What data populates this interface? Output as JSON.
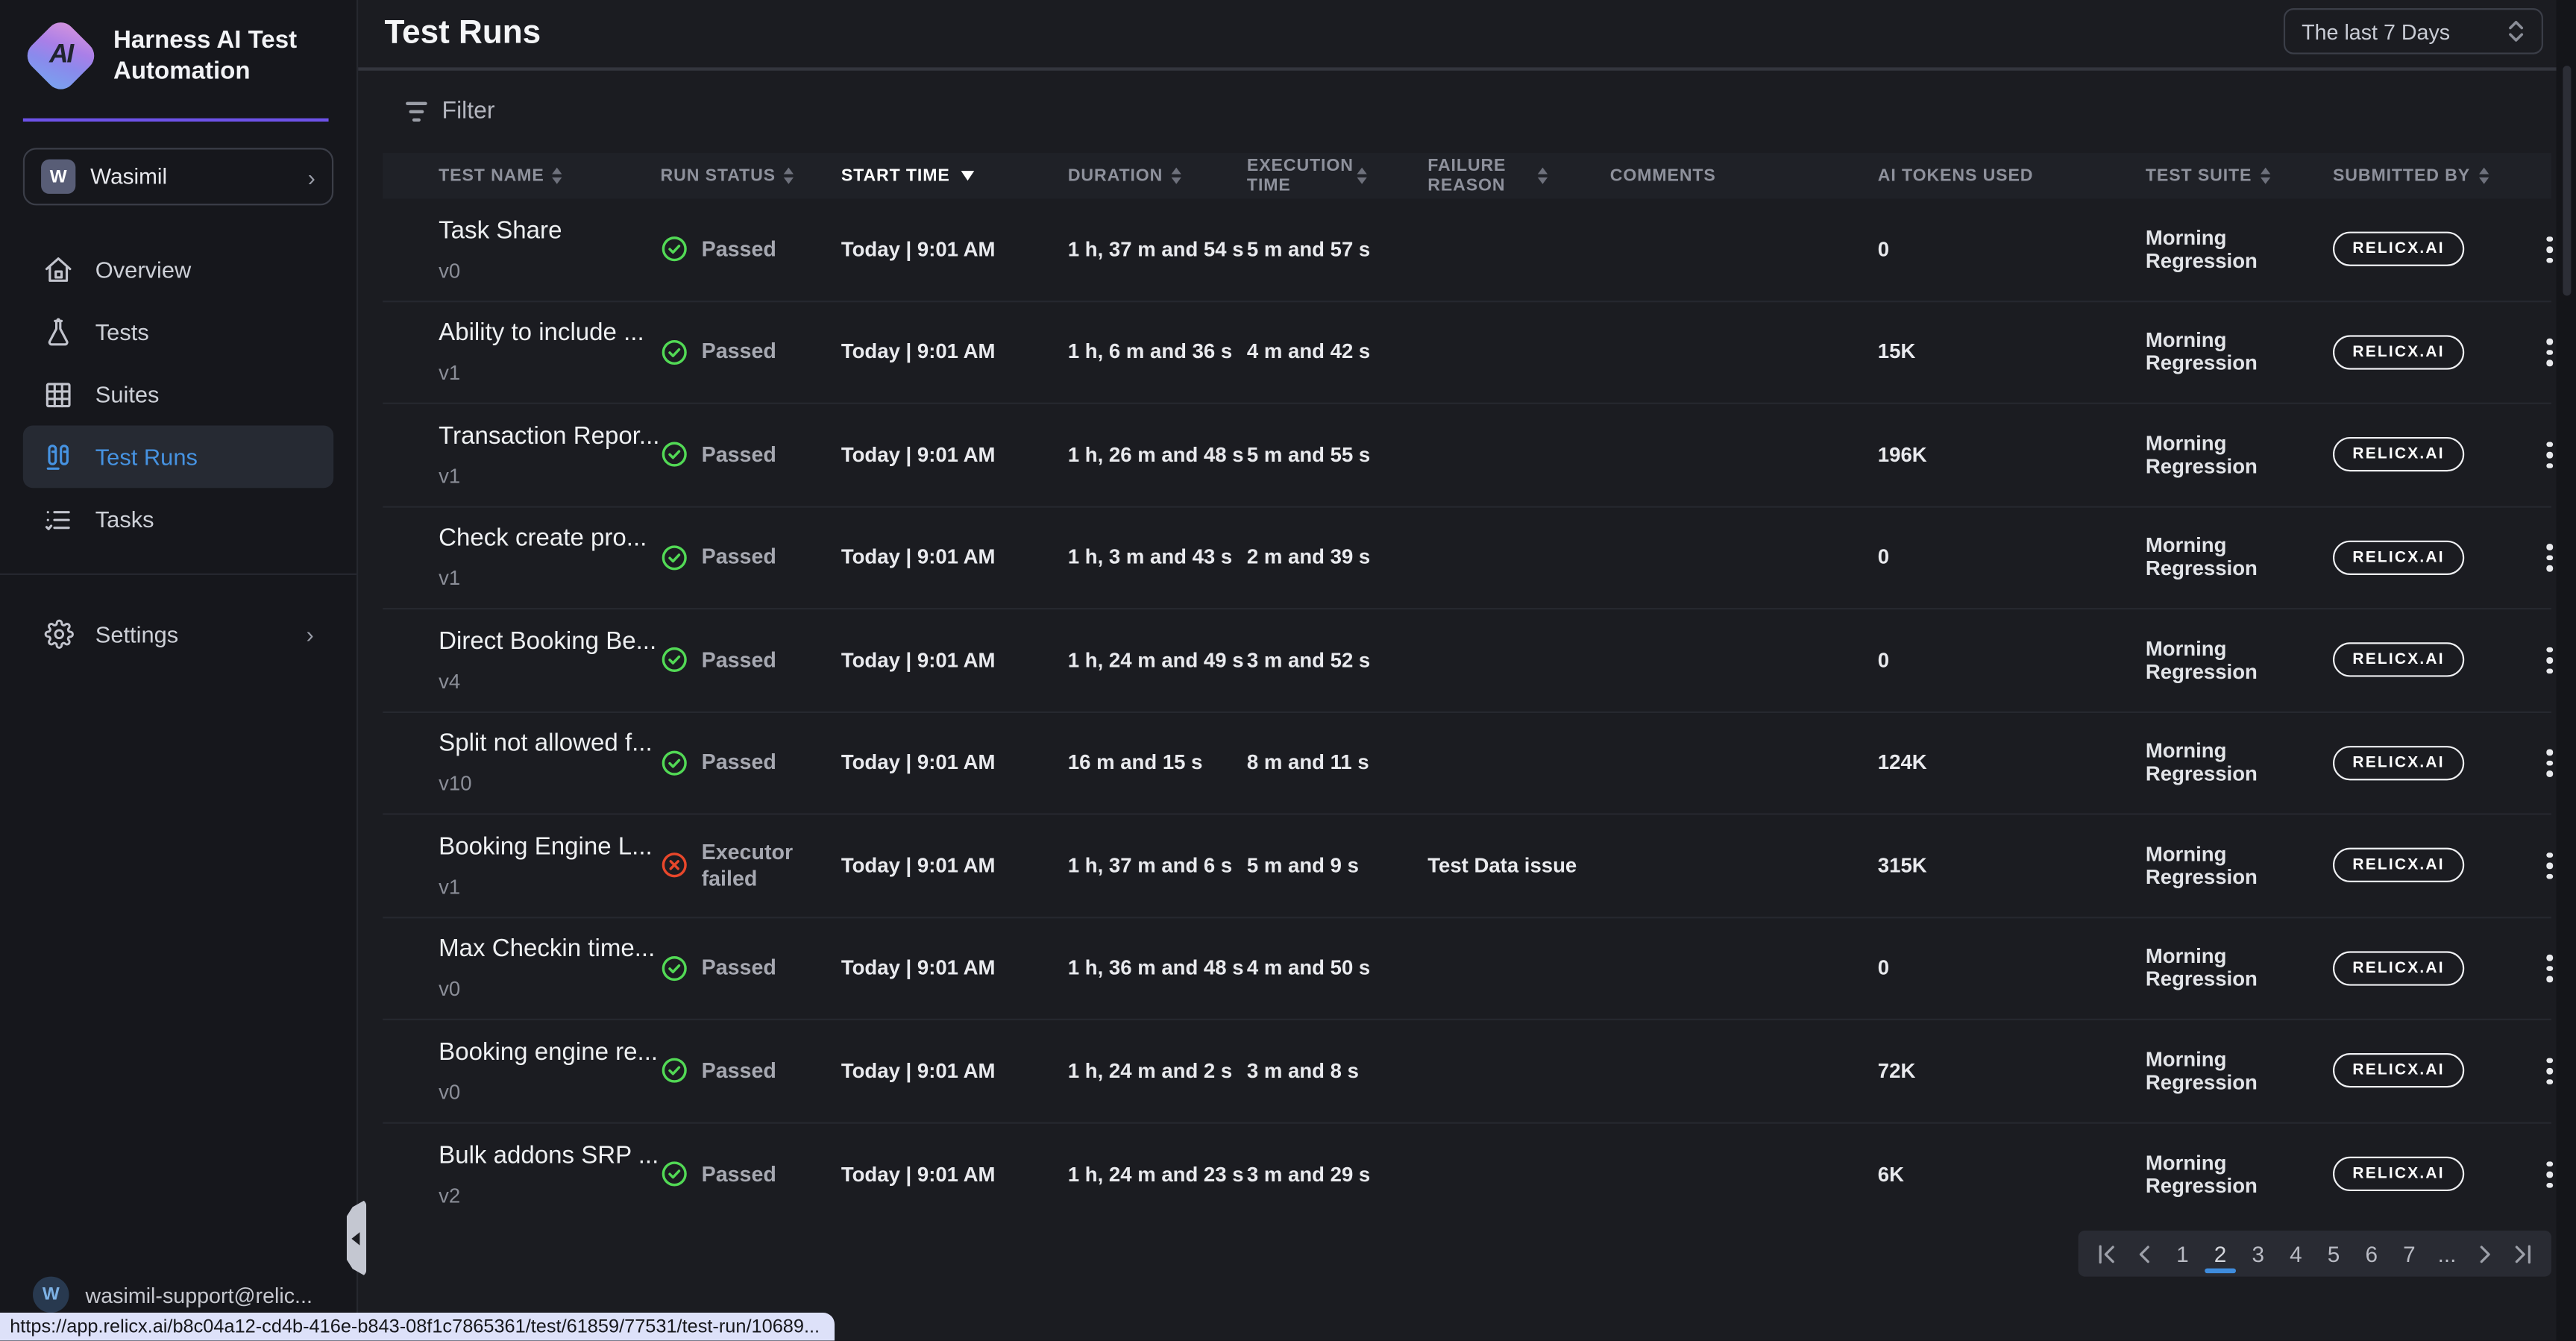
{
  "app": {
    "brand": "Harness AI Test Automation",
    "workspace": "Wasimil",
    "user_email": "wasimil-support@relic...",
    "status_url": "https://app.relicx.ai/b8c04a12-cd4b-416e-b843-08f1c7865361/test/61859/77531/test-run/10689..."
  },
  "colors": {
    "accent_purple": "#6d52e8",
    "active_blue": "#4693e2",
    "passed_green": "#52d955",
    "failed_red": "#e8472b",
    "page_underline": "#3f8cdd"
  },
  "sidebar": {
    "nav": [
      {
        "label": "Overview",
        "icon": "home",
        "active": false
      },
      {
        "label": "Tests",
        "icon": "flask",
        "active": false
      },
      {
        "label": "Suites",
        "icon": "grid",
        "active": false
      },
      {
        "label": "Test Runs",
        "icon": "tubes",
        "active": true
      },
      {
        "label": "Tasks",
        "icon": "tasks",
        "active": false
      }
    ],
    "settings_label": "Settings"
  },
  "header": {
    "title": "Test Runs",
    "date_range": "The last 7 Days"
  },
  "toolbar": {
    "filter_label": "Filter"
  },
  "table": {
    "columns": [
      {
        "id": "name",
        "label": "Test Name",
        "sort": "both"
      },
      {
        "id": "status",
        "label": "Run Status",
        "sort": "both"
      },
      {
        "id": "start",
        "label": "Start Time",
        "sort": "desc"
      },
      {
        "id": "duration",
        "label": "Duration",
        "sort": "both"
      },
      {
        "id": "exec",
        "label": "Execution Time",
        "sort": "both",
        "wrap": true
      },
      {
        "id": "failure",
        "label": "Failure Reason",
        "sort": "both",
        "wrap": true
      },
      {
        "id": "comments",
        "label": "Comments",
        "sort": "none"
      },
      {
        "id": "tokens",
        "label": "AI Tokens Used",
        "sort": "none"
      },
      {
        "id": "suite",
        "label": "Test Suite",
        "sort": "both"
      },
      {
        "id": "submitted",
        "label": "Submitted By",
        "sort": "both"
      }
    ],
    "rows": [
      {
        "name": "Task Share",
        "version": "v0",
        "status": "Passed",
        "status_type": "passed",
        "start_time": "Today | 9:01 AM",
        "duration": "1 h, 37 m and 54 s",
        "execution_time": "5 m and 57 s",
        "failure_reason": "",
        "comments": "",
        "ai_tokens": "0",
        "test_suite": "Morning Regression",
        "submitted_by": "RELICX.AI"
      },
      {
        "name": "Ability to include ...",
        "version": "v1",
        "status": "Passed",
        "status_type": "passed",
        "start_time": "Today | 9:01 AM",
        "duration": "1 h, 6 m and 36 s",
        "execution_time": "4 m and 42 s",
        "failure_reason": "",
        "comments": "",
        "ai_tokens": "15K",
        "test_suite": "Morning Regression",
        "submitted_by": "RELICX.AI"
      },
      {
        "name": "Transaction Repor...",
        "version": "v1",
        "status": "Passed",
        "status_type": "passed",
        "start_time": "Today | 9:01 AM",
        "duration": "1 h, 26 m and 48 s",
        "execution_time": "5 m and 55 s",
        "failure_reason": "",
        "comments": "",
        "ai_tokens": "196K",
        "test_suite": "Morning Regression",
        "submitted_by": "RELICX.AI"
      },
      {
        "name": "Check create pro...",
        "version": "v1",
        "status": "Passed",
        "status_type": "passed",
        "start_time": "Today | 9:01 AM",
        "duration": "1 h, 3 m and 43 s",
        "execution_time": "2 m and 39 s",
        "failure_reason": "",
        "comments": "",
        "ai_tokens": "0",
        "test_suite": "Morning Regression",
        "submitted_by": "RELICX.AI"
      },
      {
        "name": "Direct Booking Be...",
        "version": "v4",
        "status": "Passed",
        "status_type": "passed",
        "start_time": "Today | 9:01 AM",
        "duration": "1 h, 24 m and 49 s",
        "execution_time": "3 m and 52 s",
        "failure_reason": "",
        "comments": "",
        "ai_tokens": "0",
        "test_suite": "Morning Regression",
        "submitted_by": "RELICX.AI"
      },
      {
        "name": "Split not allowed f...",
        "version": "v10",
        "status": "Passed",
        "status_type": "passed",
        "start_time": "Today | 9:01 AM",
        "duration": "16 m and 15 s",
        "execution_time": "8 m and 11 s",
        "failure_reason": "",
        "comments": "",
        "ai_tokens": "124K",
        "test_suite": "Morning Regression",
        "submitted_by": "RELICX.AI"
      },
      {
        "name": "Booking Engine L...",
        "version": "v1",
        "status": "Executor failed",
        "status_type": "failed",
        "start_time": "Today | 9:01 AM",
        "duration": "1 h, 37 m and 6 s",
        "execution_time": "5 m and 9 s",
        "failure_reason": "Test Data issue",
        "comments": "",
        "ai_tokens": "315K",
        "test_suite": "Morning Regression",
        "submitted_by": "RELICX.AI"
      },
      {
        "name": "Max Checkin time...",
        "version": "v0",
        "status": "Passed",
        "status_type": "passed",
        "start_time": "Today | 9:01 AM",
        "duration": "1 h, 36 m and 48 s",
        "execution_time": "4 m and 50 s",
        "failure_reason": "",
        "comments": "",
        "ai_tokens": "0",
        "test_suite": "Morning Regression",
        "submitted_by": "RELICX.AI"
      },
      {
        "name": "Booking engine re...",
        "version": "v0",
        "status": "Passed",
        "status_type": "passed",
        "start_time": "Today | 9:01 AM",
        "duration": "1 h, 24 m and 2 s",
        "execution_time": "3 m and 8 s",
        "failure_reason": "",
        "comments": "",
        "ai_tokens": "72K",
        "test_suite": "Morning Regression",
        "submitted_by": "RELICX.AI"
      },
      {
        "name": "Bulk addons SRP ...",
        "version": "v2",
        "status": "Passed",
        "status_type": "passed",
        "start_time": "Today | 9:01 AM",
        "duration": "1 h, 24 m and 23 s",
        "execution_time": "3 m and 29 s",
        "failure_reason": "",
        "comments": "",
        "ai_tokens": "6K",
        "test_suite": "Morning Regression",
        "submitted_by": "RELICX.AI"
      }
    ]
  },
  "pagination": {
    "pages": [
      "1",
      "2",
      "3",
      "4",
      "5",
      "6",
      "7",
      "..."
    ],
    "active": "2"
  }
}
